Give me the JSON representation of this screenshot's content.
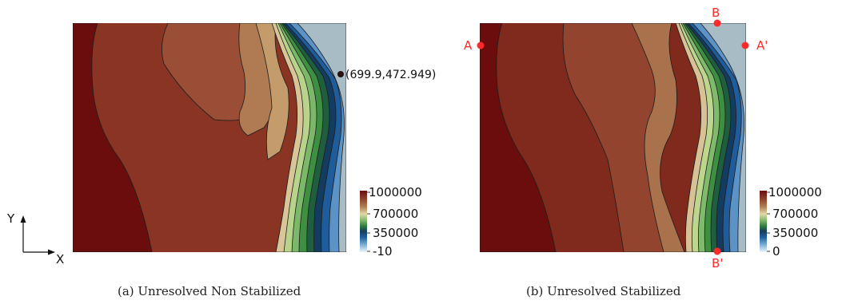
{
  "panels": [
    {
      "caption": "(a) Unresolved Non Stabilized",
      "colorbar": {
        "ticks": [
          "1000000",
          "700000",
          "350000",
          "-10"
        ]
      },
      "point_annotation": "(699.9,472.949)"
    },
    {
      "caption": "(b) Unresolved Stabilized",
      "colorbar": {
        "ticks": [
          "1000000",
          "700000",
          "350000",
          "0"
        ]
      },
      "markers": [
        "A",
        "A'",
        "B",
        "B'"
      ]
    }
  ],
  "axes_triad": {
    "x_label": "X",
    "y_label": "Y"
  },
  "colors": {
    "contour_line": "#1c1c1c",
    "marker_red": "#ff2b2b",
    "annotation_dot": "#2a1010",
    "colormap": [
      "#6b0d0d",
      "#7a2a1e",
      "#8e4a32",
      "#a8714a",
      "#c4a06e",
      "#ddd0a0",
      "#9cc47a",
      "#3d8b3a",
      "#1a5a3a",
      "#0f3a6a",
      "#2a67a8",
      "#78a8d2",
      "#b8d8ee",
      "#f0f4f8"
    ]
  }
}
